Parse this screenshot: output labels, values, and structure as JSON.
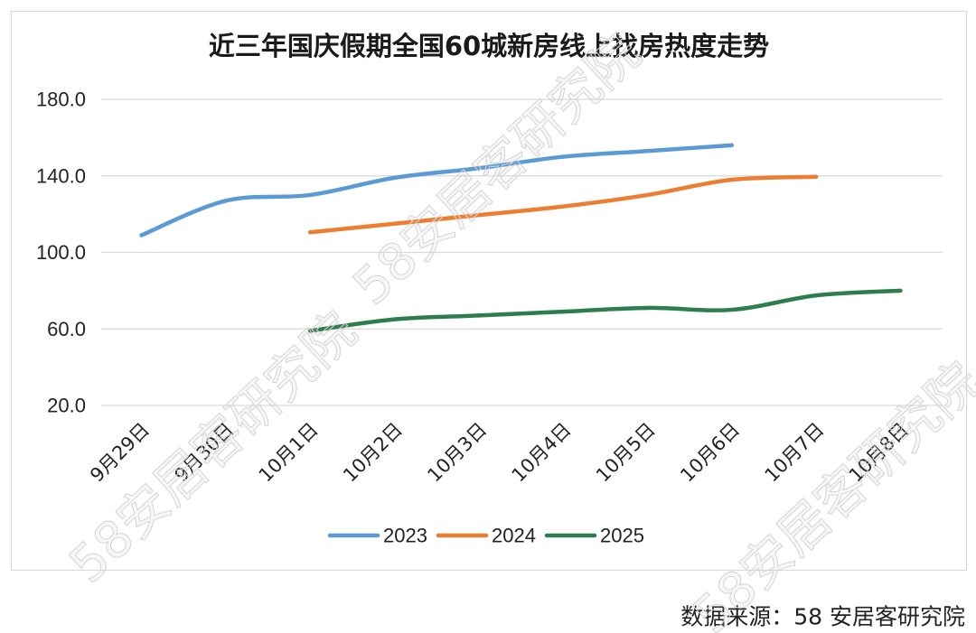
{
  "chart_data": {
    "type": "line",
    "title": "近三年国庆假期全国60城新房线上找房热度走势",
    "categories": [
      "9月29日",
      "9月30日",
      "10月1日",
      "10月2日",
      "10月3日",
      "10月4日",
      "10月5日",
      "10月6日",
      "10月7日",
      "10月8日"
    ],
    "series": [
      {
        "name": "2023",
        "color": "#5B9BD5",
        "values": [
          109,
          127,
          130,
          139,
          144,
          150,
          153,
          156,
          null,
          null
        ]
      },
      {
        "name": "2024",
        "color": "#ED7D31",
        "values": [
          null,
          null,
          110.5,
          115,
          119.5,
          124,
          130,
          138,
          139.5,
          null
        ]
      },
      {
        "name": "2025",
        "color": "#2E7D4F",
        "values": [
          null,
          null,
          59,
          65,
          67,
          69,
          71,
          70,
          77.5,
          80
        ]
      }
    ],
    "y_tick_labels": [
      "180.0",
      "140.0",
      "100.0",
      "60.0",
      "20.0"
    ],
    "ylim": [
      20,
      180
    ],
    "grid": true,
    "smooth": true,
    "legend_position": "bottom"
  },
  "source": "数据来源：58 安居客研究院",
  "watermarks": [
    "58安居客研究院",
    "58安居客研究院",
    "58安居客研究院"
  ]
}
